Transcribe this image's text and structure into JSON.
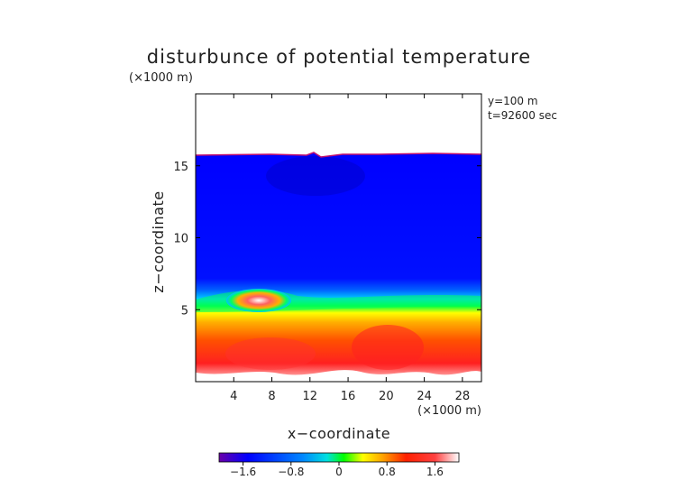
{
  "chart_data": {
    "type": "heatmap",
    "title": "disturbunce of potential temperature",
    "z_unit_label": "(×1000 m)",
    "x_unit_label": "(×1000 m)",
    "xlabel": "x−coordinate",
    "ylabel": "z−coordinate",
    "annotations": [
      "y=100 m",
      "t=92600 sec"
    ],
    "xlim": [
      0,
      30
    ],
    "ylim": [
      0,
      20
    ],
    "x_ticks": [
      4,
      8,
      12,
      16,
      20,
      24,
      28
    ],
    "y_ticks": [
      5,
      10,
      15
    ],
    "colorbar": {
      "range": [
        -2.0,
        2.0
      ],
      "ticks": [
        -1.6,
        -0.8,
        0,
        0.8,
        1.6
      ],
      "tick_labels": [
        "−1.6",
        "−0.8",
        "0",
        "0.8",
        "1.6"
      ],
      "colors": [
        "#6a00a8",
        "#0000ff",
        "#0088ff",
        "#00e0e0",
        "#00ff00",
        "#ffff00",
        "#ffa500",
        "#ff2000",
        "#ff3030",
        "#ffffff"
      ]
    },
    "field_description": {
      "model_top_km": 15.8,
      "upper_layer_value": -1.2,
      "lower_layer_value": 1.6,
      "transition_height_km": 6.0,
      "warm_pocket_center": [
        5.5,
        5.8
      ]
    },
    "grid": false,
    "legend": "colorbar-bottom"
  }
}
